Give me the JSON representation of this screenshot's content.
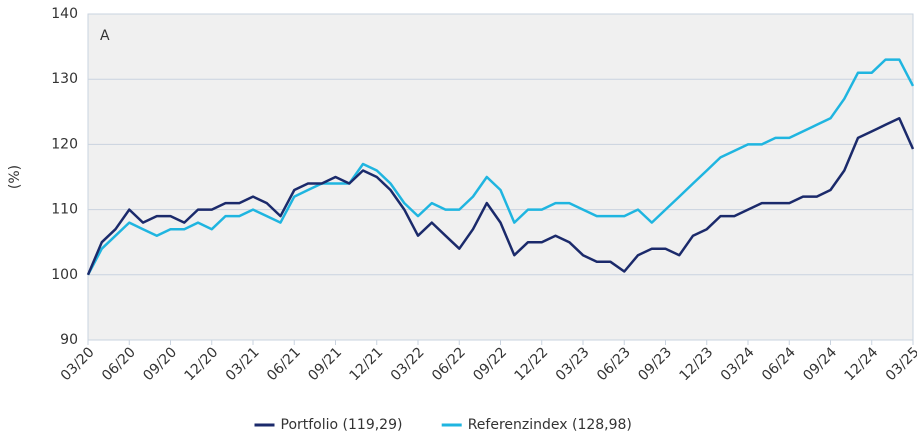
{
  "chart_data": {
    "type": "line",
    "annotation": "A",
    "y_label": "(%)",
    "categories": [
      "03/20",
      null,
      null,
      "06/20",
      null,
      null,
      "09/20",
      null,
      null,
      "12/20",
      null,
      null,
      "03/21",
      null,
      null,
      "06/21",
      null,
      null,
      "09/21",
      null,
      null,
      "12/21",
      null,
      null,
      "03/22",
      null,
      null,
      "06/22",
      null,
      null,
      "09/22",
      null,
      null,
      "12/22",
      null,
      null,
      "03/23",
      null,
      null,
      "06/23",
      null,
      null,
      "09/23",
      null,
      null,
      "12/23",
      null,
      null,
      "03/24",
      null,
      null,
      "06/24",
      null,
      null,
      "09/24",
      null,
      null,
      "12/24",
      null,
      null,
      "03/25"
    ],
    "series": [
      {
        "name": "Referenzindex (128,98)",
        "color": "#1fb5e0",
        "values": [
          100,
          104,
          106,
          108,
          107,
          106,
          107,
          107,
          108,
          107,
          109,
          109,
          110,
          109,
          108,
          112,
          113,
          114,
          114,
          114,
          117,
          116,
          114,
          111,
          109,
          111,
          110,
          110,
          112,
          115,
          113,
          108,
          110,
          110,
          111,
          111,
          110,
          109,
          109,
          109,
          110,
          108,
          110,
          112,
          114,
          116,
          118,
          119,
          120,
          120,
          121,
          121,
          122,
          123,
          124,
          127,
          131,
          131,
          133,
          133,
          128.98
        ]
      },
      {
        "name": "Portfolio (119,29)",
        "color": "#1b2a6b",
        "values": [
          100,
          105,
          107,
          110,
          108,
          109,
          109,
          108,
          110,
          110,
          111,
          111,
          112,
          111,
          109,
          113,
          114,
          114,
          115,
          114,
          116,
          115,
          113,
          110,
          106,
          108,
          106,
          104,
          107,
          111,
          108,
          103,
          105,
          105,
          106,
          105,
          103,
          102,
          102,
          100.5,
          103,
          104,
          104,
          103,
          106,
          107,
          109,
          109,
          110,
          111,
          111,
          111,
          112,
          112,
          113,
          116,
          121,
          122,
          123,
          124,
          119.29
        ]
      }
    ],
    "ylim": [
      90,
      140
    ],
    "yticks": [
      90,
      100,
      110,
      120,
      130,
      140
    ],
    "grid": true
  }
}
